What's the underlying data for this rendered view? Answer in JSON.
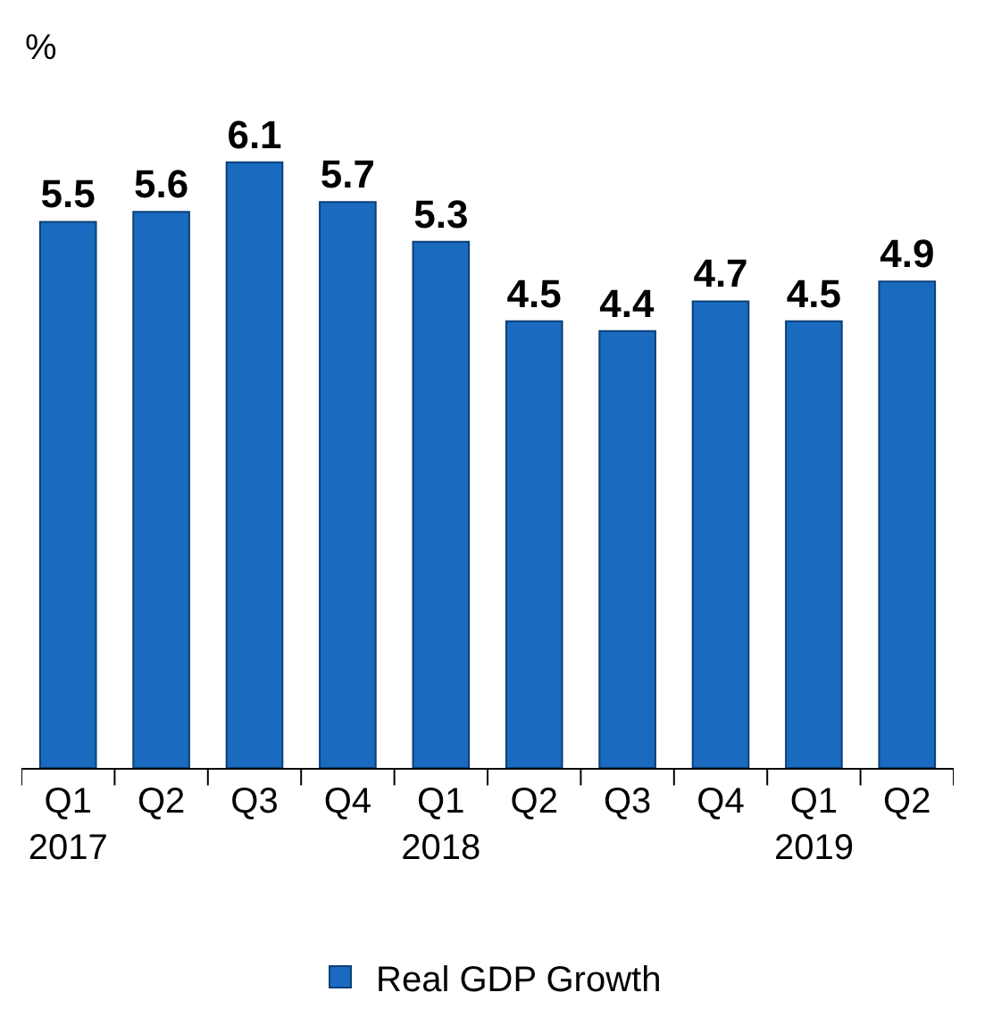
{
  "chart_data": {
    "type": "bar",
    "ylabel": "%",
    "categories": [
      "Q1\n2017",
      "Q2",
      "Q3",
      "Q4",
      "Q1\n2018",
      "Q2",
      "Q3",
      "Q4",
      "Q1\n2019",
      "Q2"
    ],
    "series": [
      {
        "name": "Real GDP Growth",
        "color": "#1a6bbf",
        "values": [
          5.5,
          5.6,
          6.1,
          5.7,
          5.3,
          4.5,
          4.4,
          4.7,
          4.5,
          4.9
        ]
      }
    ],
    "data_labels": true,
    "legend": "bottom"
  }
}
